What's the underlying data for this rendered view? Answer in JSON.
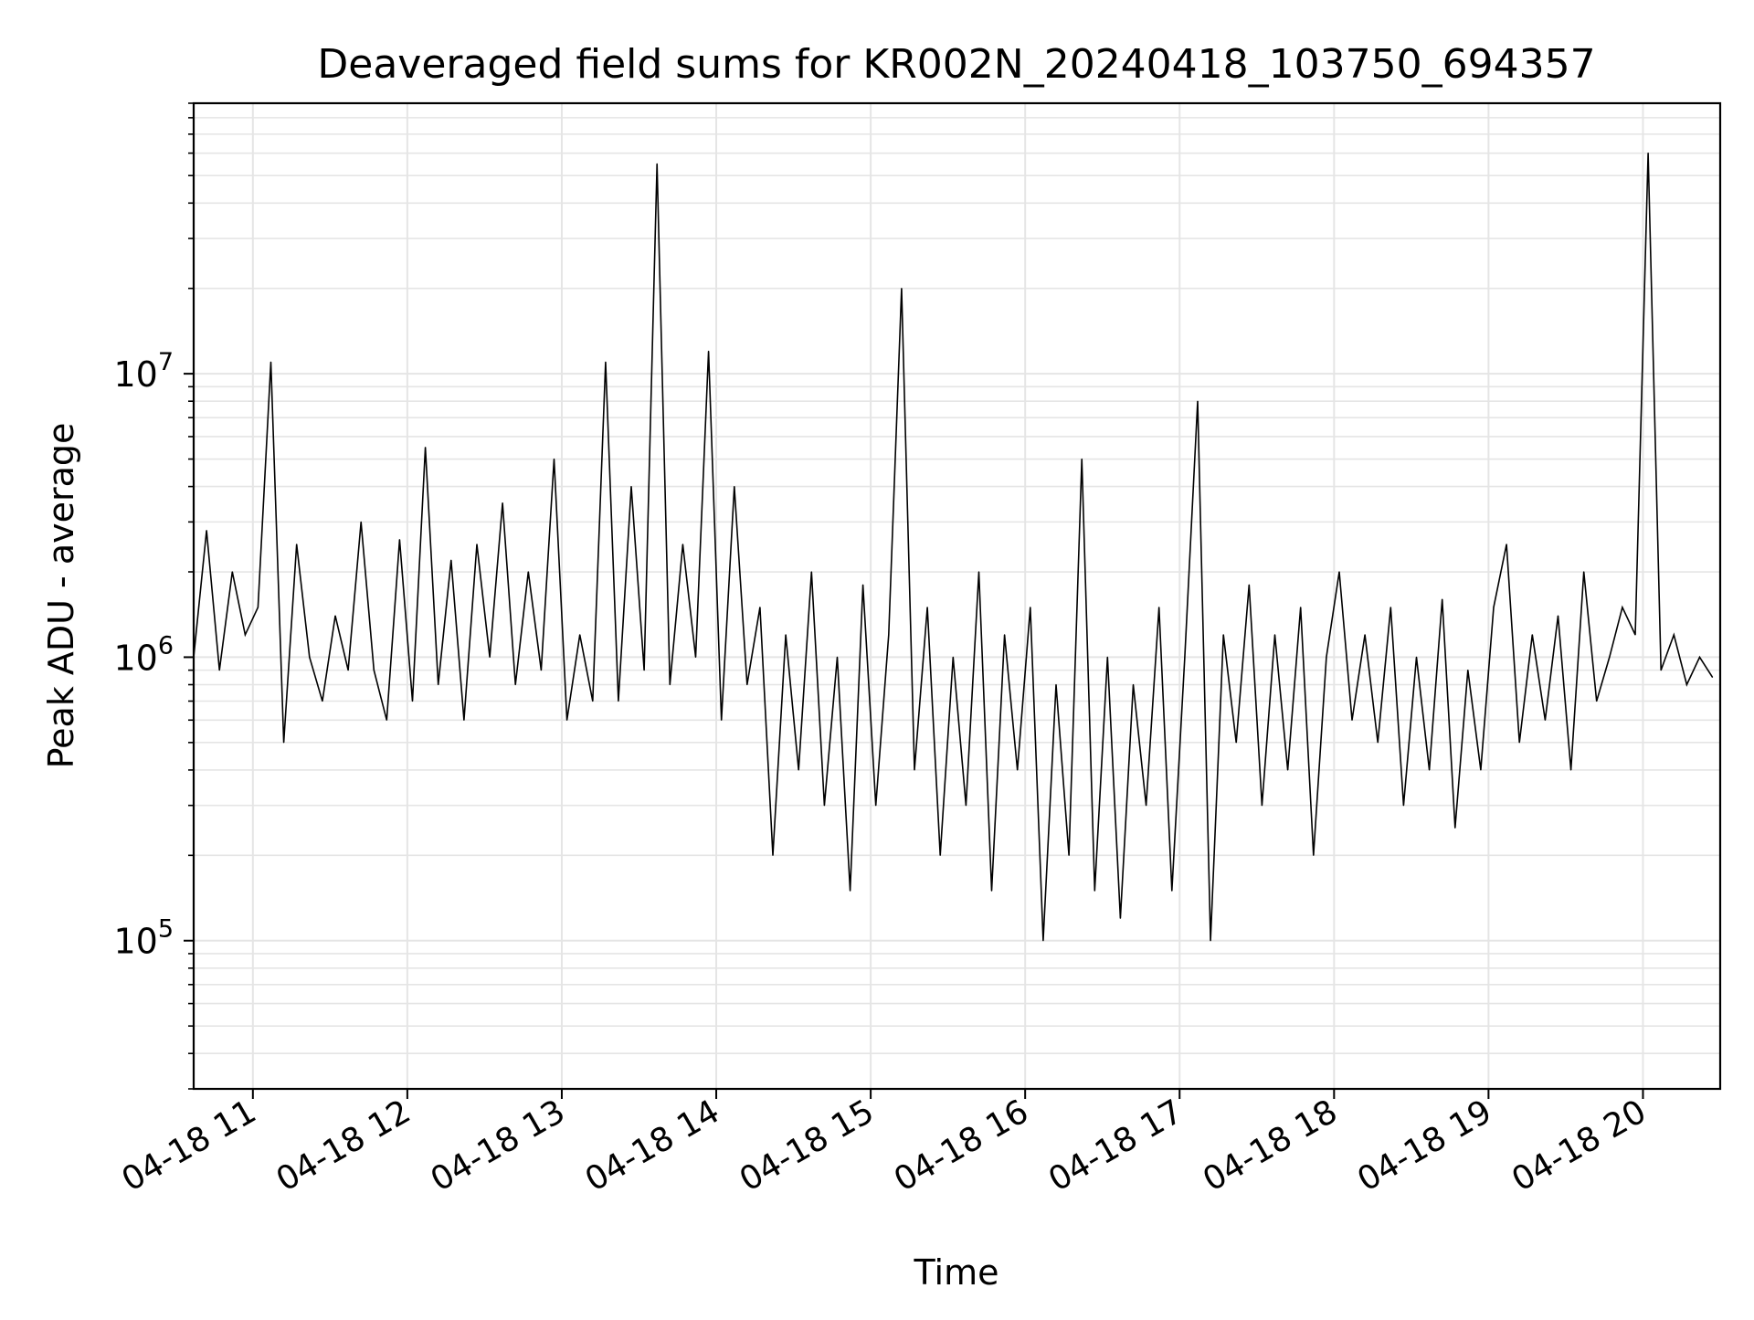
{
  "chart_data": {
    "type": "line",
    "title": "Deaveraged field sums for KR002N_20240418_103750_694357",
    "xlabel": "Time",
    "ylabel": "Peak ADU - average",
    "y_scale": "log",
    "ylim": [
      30000,
      90000000
    ],
    "xlim": [
      "2024-04-18 10:37",
      "2024-04-18 20:30"
    ],
    "x_ticks": [
      "2024-04-18 11:00",
      "2024-04-18 12:00",
      "2024-04-18 13:00",
      "2024-04-18 14:00",
      "2024-04-18 15:00",
      "2024-04-18 16:00",
      "2024-04-18 17:00",
      "2024-04-18 18:00",
      "2024-04-18 19:00",
      "2024-04-18 20:00"
    ],
    "x_tick_labels": [
      "04-18 11",
      "04-18 12",
      "04-18 13",
      "04-18 14",
      "04-18 15",
      "04-18 16",
      "04-18 17",
      "04-18 18",
      "04-18 19",
      "04-18 20"
    ],
    "y_ticks": [
      {
        "base": "10",
        "exp": "5",
        "value": 100000
      },
      {
        "base": "10",
        "exp": "6",
        "value": 1000000
      },
      {
        "base": "10",
        "exp": "7",
        "value": 10000000
      }
    ],
    "grid": true,
    "line_color": "#000000",
    "grid_color": "#e5e5e5",
    "series": [
      {
        "x": [
          "2024-04-18 10:37",
          "2024-04-18 10:42",
          "2024-04-18 10:47",
          "2024-04-18 10:52",
          "2024-04-18 10:57",
          "2024-04-18 11:02",
          "2024-04-18 11:07",
          "2024-04-18 11:12",
          "2024-04-18 11:17",
          "2024-04-18 11:22",
          "2024-04-18 11:27",
          "2024-04-18 11:32",
          "2024-04-18 11:37",
          "2024-04-18 11:42",
          "2024-04-18 11:47",
          "2024-04-18 11:52",
          "2024-04-18 11:57",
          "2024-04-18 12:02",
          "2024-04-18 12:07",
          "2024-04-18 12:12",
          "2024-04-18 12:17",
          "2024-04-18 12:22",
          "2024-04-18 12:27",
          "2024-04-18 12:32",
          "2024-04-18 12:37",
          "2024-04-18 12:42",
          "2024-04-18 12:47",
          "2024-04-18 12:52",
          "2024-04-18 12:57",
          "2024-04-18 13:02",
          "2024-04-18 13:07",
          "2024-04-18 13:12",
          "2024-04-18 13:17",
          "2024-04-18 13:22",
          "2024-04-18 13:27",
          "2024-04-18 13:32",
          "2024-04-18 13:37",
          "2024-04-18 13:42",
          "2024-04-18 13:47",
          "2024-04-18 13:52",
          "2024-04-18 13:57",
          "2024-04-18 14:02",
          "2024-04-18 14:07",
          "2024-04-18 14:12",
          "2024-04-18 14:17",
          "2024-04-18 14:22",
          "2024-04-18 14:27",
          "2024-04-18 14:32",
          "2024-04-18 14:37",
          "2024-04-18 14:42",
          "2024-04-18 14:47",
          "2024-04-18 14:52",
          "2024-04-18 14:57",
          "2024-04-18 15:02",
          "2024-04-18 15:07",
          "2024-04-18 15:12",
          "2024-04-18 15:17",
          "2024-04-18 15:22",
          "2024-04-18 15:27",
          "2024-04-18 15:32",
          "2024-04-18 15:37",
          "2024-04-18 15:42",
          "2024-04-18 15:47",
          "2024-04-18 15:52",
          "2024-04-18 15:57",
          "2024-04-18 16:02",
          "2024-04-18 16:07",
          "2024-04-18 16:12",
          "2024-04-18 16:17",
          "2024-04-18 16:22",
          "2024-04-18 16:27",
          "2024-04-18 16:32",
          "2024-04-18 16:37",
          "2024-04-18 16:42",
          "2024-04-18 16:47",
          "2024-04-18 16:52",
          "2024-04-18 16:57",
          "2024-04-18 17:02",
          "2024-04-18 17:07",
          "2024-04-18 17:12",
          "2024-04-18 17:17",
          "2024-04-18 17:22",
          "2024-04-18 17:27",
          "2024-04-18 17:32",
          "2024-04-18 17:37",
          "2024-04-18 17:42",
          "2024-04-18 17:47",
          "2024-04-18 17:52",
          "2024-04-18 17:57",
          "2024-04-18 18:02",
          "2024-04-18 18:07",
          "2024-04-18 18:12",
          "2024-04-18 18:17",
          "2024-04-18 18:22",
          "2024-04-18 18:27",
          "2024-04-18 18:32",
          "2024-04-18 18:37",
          "2024-04-18 18:42",
          "2024-04-18 18:47",
          "2024-04-18 18:52",
          "2024-04-18 18:57",
          "2024-04-18 19:02",
          "2024-04-18 19:07",
          "2024-04-18 19:12",
          "2024-04-18 19:17",
          "2024-04-18 19:22",
          "2024-04-18 19:27",
          "2024-04-18 19:32",
          "2024-04-18 19:37",
          "2024-04-18 19:42",
          "2024-04-18 19:47",
          "2024-04-18 19:52",
          "2024-04-18 19:57",
          "2024-04-18 20:02",
          "2024-04-18 20:07",
          "2024-04-18 20:12",
          "2024-04-18 20:17",
          "2024-04-18 20:22",
          "2024-04-18 20:27"
        ],
        "values": [
          1000000,
          2800000,
          900000,
          2000000,
          1200000,
          1500000,
          11000000,
          500000,
          2500000,
          1000000,
          700000,
          1400000,
          900000,
          3000000,
          900000,
          600000,
          2600000,
          700000,
          5500000,
          800000,
          2200000,
          600000,
          2500000,
          1000000,
          3500000,
          800000,
          2000000,
          900000,
          5000000,
          600000,
          1200000,
          700000,
          11000000,
          700000,
          4000000,
          900000,
          55000000,
          800000,
          2500000,
          1000000,
          12000000,
          600000,
          4000000,
          800000,
          1500000,
          200000,
          1200000,
          400000,
          2000000,
          300000,
          1000000,
          150000,
          1800000,
          300000,
          1200000,
          20000000,
          400000,
          1500000,
          200000,
          1000000,
          300000,
          2000000,
          150000,
          1200000,
          400000,
          1500000,
          100000,
          800000,
          200000,
          5000000,
          150000,
          1000000,
          120000,
          800000,
          300000,
          1500000,
          150000,
          1000000,
          8000000,
          100000,
          1200000,
          500000,
          1800000,
          300000,
          1200000,
          400000,
          1500000,
          200000,
          1000000,
          2000000,
          600000,
          1200000,
          500000,
          1500000,
          300000,
          1000000,
          400000,
          1600000,
          250000,
          900000,
          400000,
          1500000,
          2500000,
          500000,
          1200000,
          600000,
          1400000,
          400000,
          2000000,
          700000,
          1000000,
          1500000,
          1200000,
          60000000,
          900000,
          1200000,
          800000,
          1000000,
          850000
        ]
      }
    ]
  }
}
